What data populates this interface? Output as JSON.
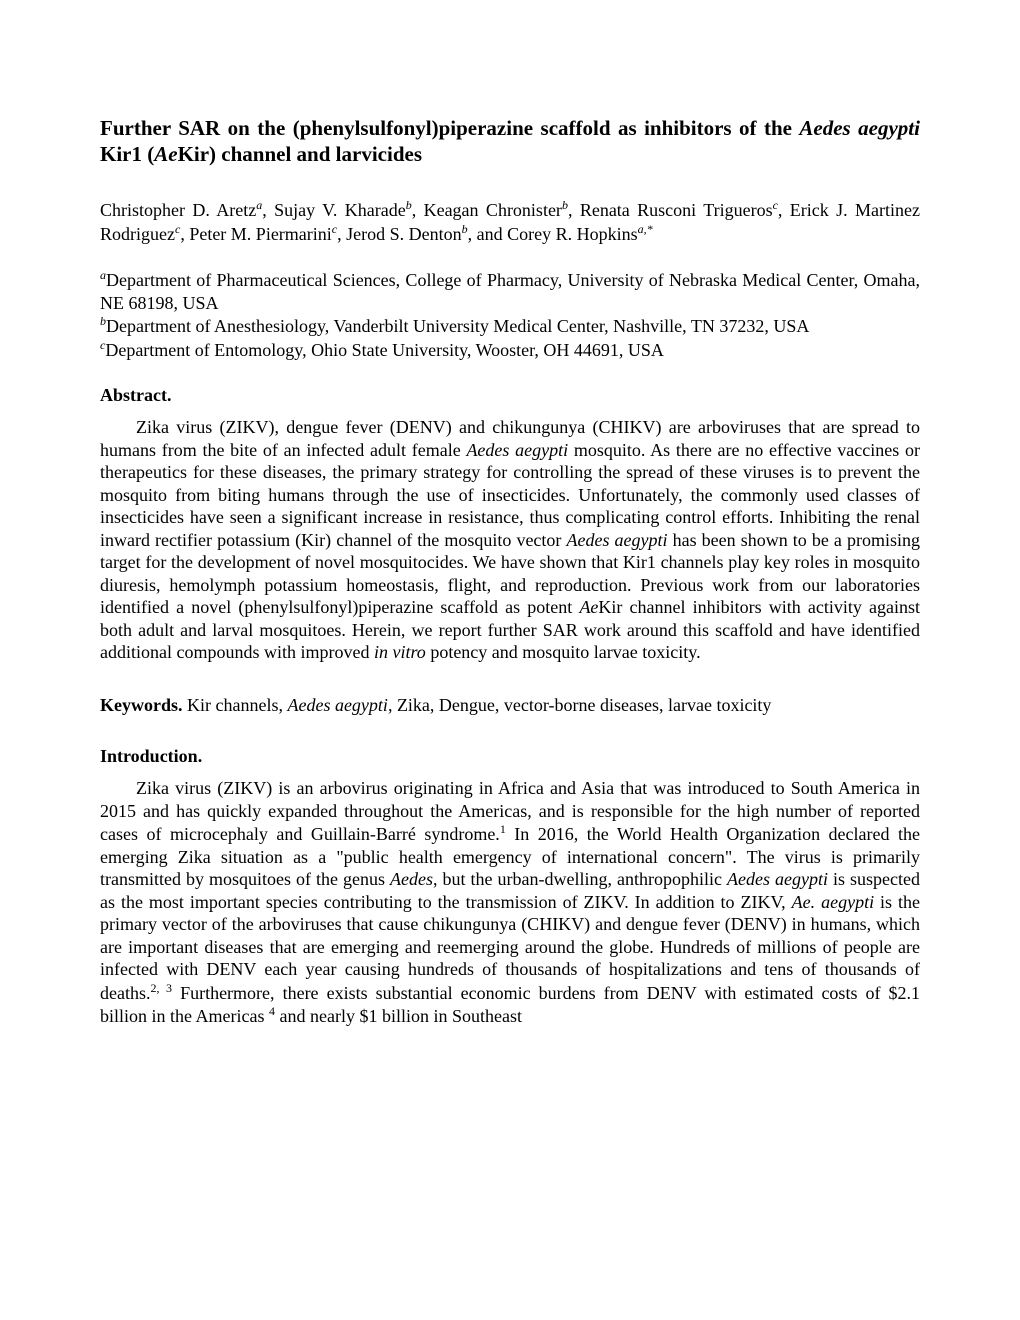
{
  "title": {
    "part1": "Further SAR on the (phenylsulfonyl)piperazine scaffold as inhibitors of the ",
    "species": "Aedes aegypti",
    "part2": " Kir1 (",
    "abbrev": "Ae",
    "part3": "Kir) channel and larvicides"
  },
  "authors": {
    "a1_name": "Christopher D. Aretz",
    "a1_sup": "a",
    "a2_name": ", Sujay V. Kharade",
    "a2_sup": "b",
    "a3_name": ", Keagan Chronister",
    "a3_sup": "b",
    "a4_name": ", Renata Rusconi Trigueros",
    "a4_sup": "c",
    "a5_name": ", Erick J. Martinez Rodriguez",
    "a5_sup": "c",
    "a6_name": ", Peter M. Piermarini",
    "a6_sup": "c",
    "a7_name": ", Jerod S. Denton",
    "a7_sup": "b",
    "a8_name": ", and Corey R. Hopkins",
    "a8_sup": "a,*"
  },
  "affiliations": {
    "aff1_sup": "a",
    "aff1_text": "Department of Pharmaceutical Sciences, College of Pharmacy, University of Nebraska Medical Center, Omaha, NE 68198, USA",
    "aff2_sup": "b",
    "aff2_text": "Department of Anesthesiology, Vanderbilt University Medical Center, Nashville, TN 37232, USA",
    "aff3_sup": "c",
    "aff3_text": "Department of Entomology, Ohio State University, Wooster, OH 44691, USA"
  },
  "abstract": {
    "heading": "Abstract.",
    "p1": "Zika virus (ZIKV), dengue fever (DENV) and chikungunya (CHIKV) are arboviruses that are spread to humans from the bite of an infected adult female ",
    "species1": "Aedes aegypti",
    "p2": " mosquito. As there are no effective vaccines or therapeutics for these diseases, the primary strategy for controlling the spread of these viruses is to prevent the mosquito from biting humans through the use of insecticides. Unfortunately, the commonly used classes of insecticides have seen a significant increase in resistance, thus complicating control efforts. Inhibiting the renal inward rectifier potassium (Kir) channel of the mosquito vector ",
    "species2": "Aedes aegypti",
    "p3": " has been shown to be a promising target for the development of novel mosquitocides. We have shown that Kir1 channels play key roles in mosquito diuresis, hemolymph potassium homeostasis, flight, and reproduction. Previous work from our laboratories identified a novel (phenylsulfonyl)piperazine scaffold as potent ",
    "abbrev1": "Ae",
    "p4": "Kir channel inhibitors with activity against both adult and larval mosquitoes. Herein, we report further SAR work around this scaffold and have identified additional compounds with improved ",
    "invitro": "in vitro",
    "p5": " potency and mosquito larvae toxicity."
  },
  "keywords": {
    "label": "Keywords.",
    "k1": " Kir channels, ",
    "species": "Aedes aegypti",
    "k2": ", Zika, Dengue, vector-borne diseases, larvae toxicity"
  },
  "introduction": {
    "heading": "Introduction.",
    "p1": "Zika virus (ZIKV) is an arbovirus originating in Africa and Asia that was introduced to South America in 2015 and has quickly expanded throughout the Americas, and is responsible for the high number of reported cases of microcephaly and Guillain-Barré syndrome.",
    "ref1": "1",
    "p2": " In 2016, the World Health Organization declared the emerging Zika situation as a \"public health emergency of international concern\". The virus is primarily transmitted by mosquitoes of the genus ",
    "genus": "Aedes",
    "p3": ", but the urban-dwelling, anthropophilic ",
    "species1": "Aedes aegypti",
    "p4": " is suspected as the most important species contributing to the transmission of ZIKV. In addition to ZIKV, ",
    "species2": "Ae. aegypti",
    "p5": " is the primary vector of the arboviruses that cause chikungunya (CHIKV) and dengue fever (DENV) in humans, which are important diseases that are emerging and reemerging around the globe. Hundreds of millions of people are infected with DENV each year causing hundreds of thousands of hospitalizations and tens of thousands of deaths.",
    "ref2": "2, 3",
    "p6": " Furthermore, there exists substantial economic burdens from DENV with estimated costs of $2.1 billion in the Americas ",
    "ref3": "4",
    "p7": " and nearly $1 billion in Southeast"
  }
}
